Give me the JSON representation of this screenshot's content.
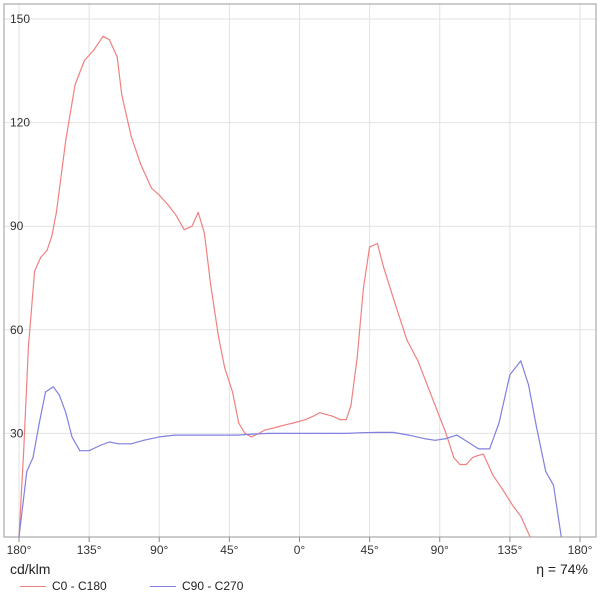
{
  "chart_data": {
    "type": "line",
    "x_tick_labels": [
      "180°",
      "135°",
      "90°",
      "45°",
      "0°",
      "45°",
      "90°",
      "135°",
      "180°"
    ],
    "y_ticks": [
      30,
      60,
      90,
      120,
      150
    ],
    "ylim": [
      0,
      150
    ],
    "xlim": [
      -180,
      180
    ],
    "grid": true,
    "unit_label": "cd/klm",
    "efficiency_label": "η = 74%",
    "legend_position": "bottom-left",
    "series": [
      {
        "name": "C0 - C180",
        "color": "#f08080",
        "points": [
          [
            -180,
            0
          ],
          [
            -177,
            25
          ],
          [
            -174,
            55
          ],
          [
            -170,
            77
          ],
          [
            -166,
            81
          ],
          [
            -162,
            83
          ],
          [
            -159,
            87
          ],
          [
            -156,
            94
          ],
          [
            -150,
            115
          ],
          [
            -144,
            131
          ],
          [
            -138,
            138
          ],
          [
            -132,
            141
          ],
          [
            -126,
            145
          ],
          [
            -122,
            144
          ],
          [
            -117,
            139
          ],
          [
            -114,
            128
          ],
          [
            -108,
            116
          ],
          [
            -102,
            108
          ],
          [
            -95,
            101
          ],
          [
            -90,
            99
          ],
          [
            -84,
            96
          ],
          [
            -79,
            93
          ],
          [
            -74,
            89
          ],
          [
            -69,
            90
          ],
          [
            -65,
            94
          ],
          [
            -61,
            88
          ],
          [
            -57,
            73
          ],
          [
            -52,
            58
          ],
          [
            -48,
            49
          ],
          [
            -43,
            42
          ],
          [
            -39,
            33
          ],
          [
            -35,
            30
          ],
          [
            -31,
            29
          ],
          [
            -26,
            30
          ],
          [
            -22,
            31
          ],
          [
            -17,
            31.5
          ],
          [
            -13,
            32
          ],
          [
            -9,
            32.5
          ],
          [
            -4,
            33
          ],
          [
            0,
            33.5
          ],
          [
            4,
            34
          ],
          [
            9,
            35
          ],
          [
            13,
            36
          ],
          [
            17,
            35.5
          ],
          [
            21,
            35
          ],
          [
            26,
            34
          ],
          [
            30,
            34
          ],
          [
            33,
            38
          ],
          [
            37,
            52
          ],
          [
            41,
            72
          ],
          [
            45,
            84
          ],
          [
            50,
            85
          ],
          [
            54,
            78
          ],
          [
            61,
            68
          ],
          [
            69,
            57
          ],
          [
            76,
            51
          ],
          [
            82,
            44
          ],
          [
            88,
            37
          ],
          [
            94,
            30
          ],
          [
            99,
            23
          ],
          [
            103,
            21
          ],
          [
            107,
            21
          ],
          [
            111,
            23
          ],
          [
            114,
            23.5
          ],
          [
            118,
            24
          ],
          [
            124,
            18
          ],
          [
            130,
            14
          ],
          [
            137,
            9
          ],
          [
            142,
            6
          ],
          [
            148,
            0
          ]
        ]
      },
      {
        "name": "C90 - C270",
        "color": "#8080e0",
        "points": [
          [
            -180,
            0
          ],
          [
            -175,
            19
          ],
          [
            -171,
            23
          ],
          [
            -167,
            33
          ],
          [
            -163,
            42
          ],
          [
            -158,
            43.5
          ],
          [
            -154,
            41
          ],
          [
            -150,
            36
          ],
          [
            -146,
            29
          ],
          [
            -141,
            25
          ],
          [
            -135,
            25
          ],
          [
            -128,
            26.5
          ],
          [
            -122,
            27.5
          ],
          [
            -116,
            27
          ],
          [
            -108,
            27
          ],
          [
            -100,
            28
          ],
          [
            -90,
            29
          ],
          [
            -80,
            29.5
          ],
          [
            -70,
            29.5
          ],
          [
            -60,
            29.5
          ],
          [
            -50,
            29.5
          ],
          [
            -40,
            29.5
          ],
          [
            -30,
            29.8
          ],
          [
            -20,
            30
          ],
          [
            -10,
            30
          ],
          [
            0,
            30
          ],
          [
            10,
            30
          ],
          [
            20,
            30
          ],
          [
            30,
            30
          ],
          [
            40,
            30.2
          ],
          [
            50,
            30.3
          ],
          [
            60,
            30.3
          ],
          [
            70,
            29.5
          ],
          [
            80,
            28.5
          ],
          [
            87,
            28
          ],
          [
            94,
            28.5
          ],
          [
            101,
            29.5
          ],
          [
            108,
            27.5
          ],
          [
            115,
            25.5
          ],
          [
            122,
            25.5
          ],
          [
            128,
            33
          ],
          [
            135,
            47
          ],
          [
            142,
            51
          ],
          [
            147,
            44
          ],
          [
            152,
            32
          ],
          [
            158,
            19
          ],
          [
            163,
            15
          ],
          [
            168,
            0
          ]
        ]
      }
    ]
  }
}
